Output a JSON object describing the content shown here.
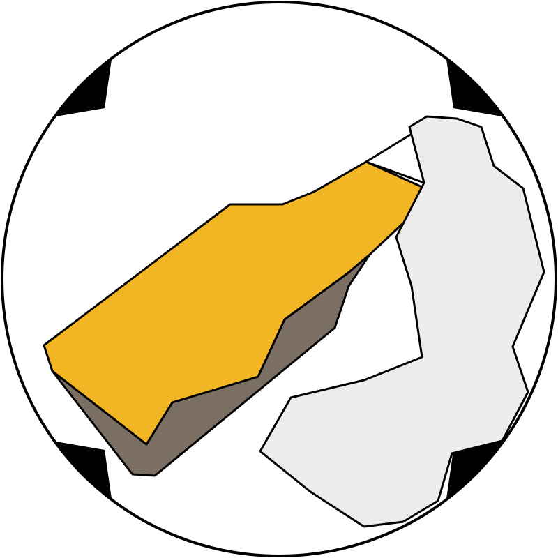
{
  "colors": {
    "background": "#ffffff",
    "outline": "#000000",
    "corner_marks": "#000000",
    "bottle_body": "#f2b523",
    "bottle_shadow": "#7a6f62",
    "hand": "#ececec"
  },
  "icons": {
    "main": "bottle-in-hand-icon",
    "frame": "circle-frame-icon",
    "corners": "corner-mark-icon"
  }
}
